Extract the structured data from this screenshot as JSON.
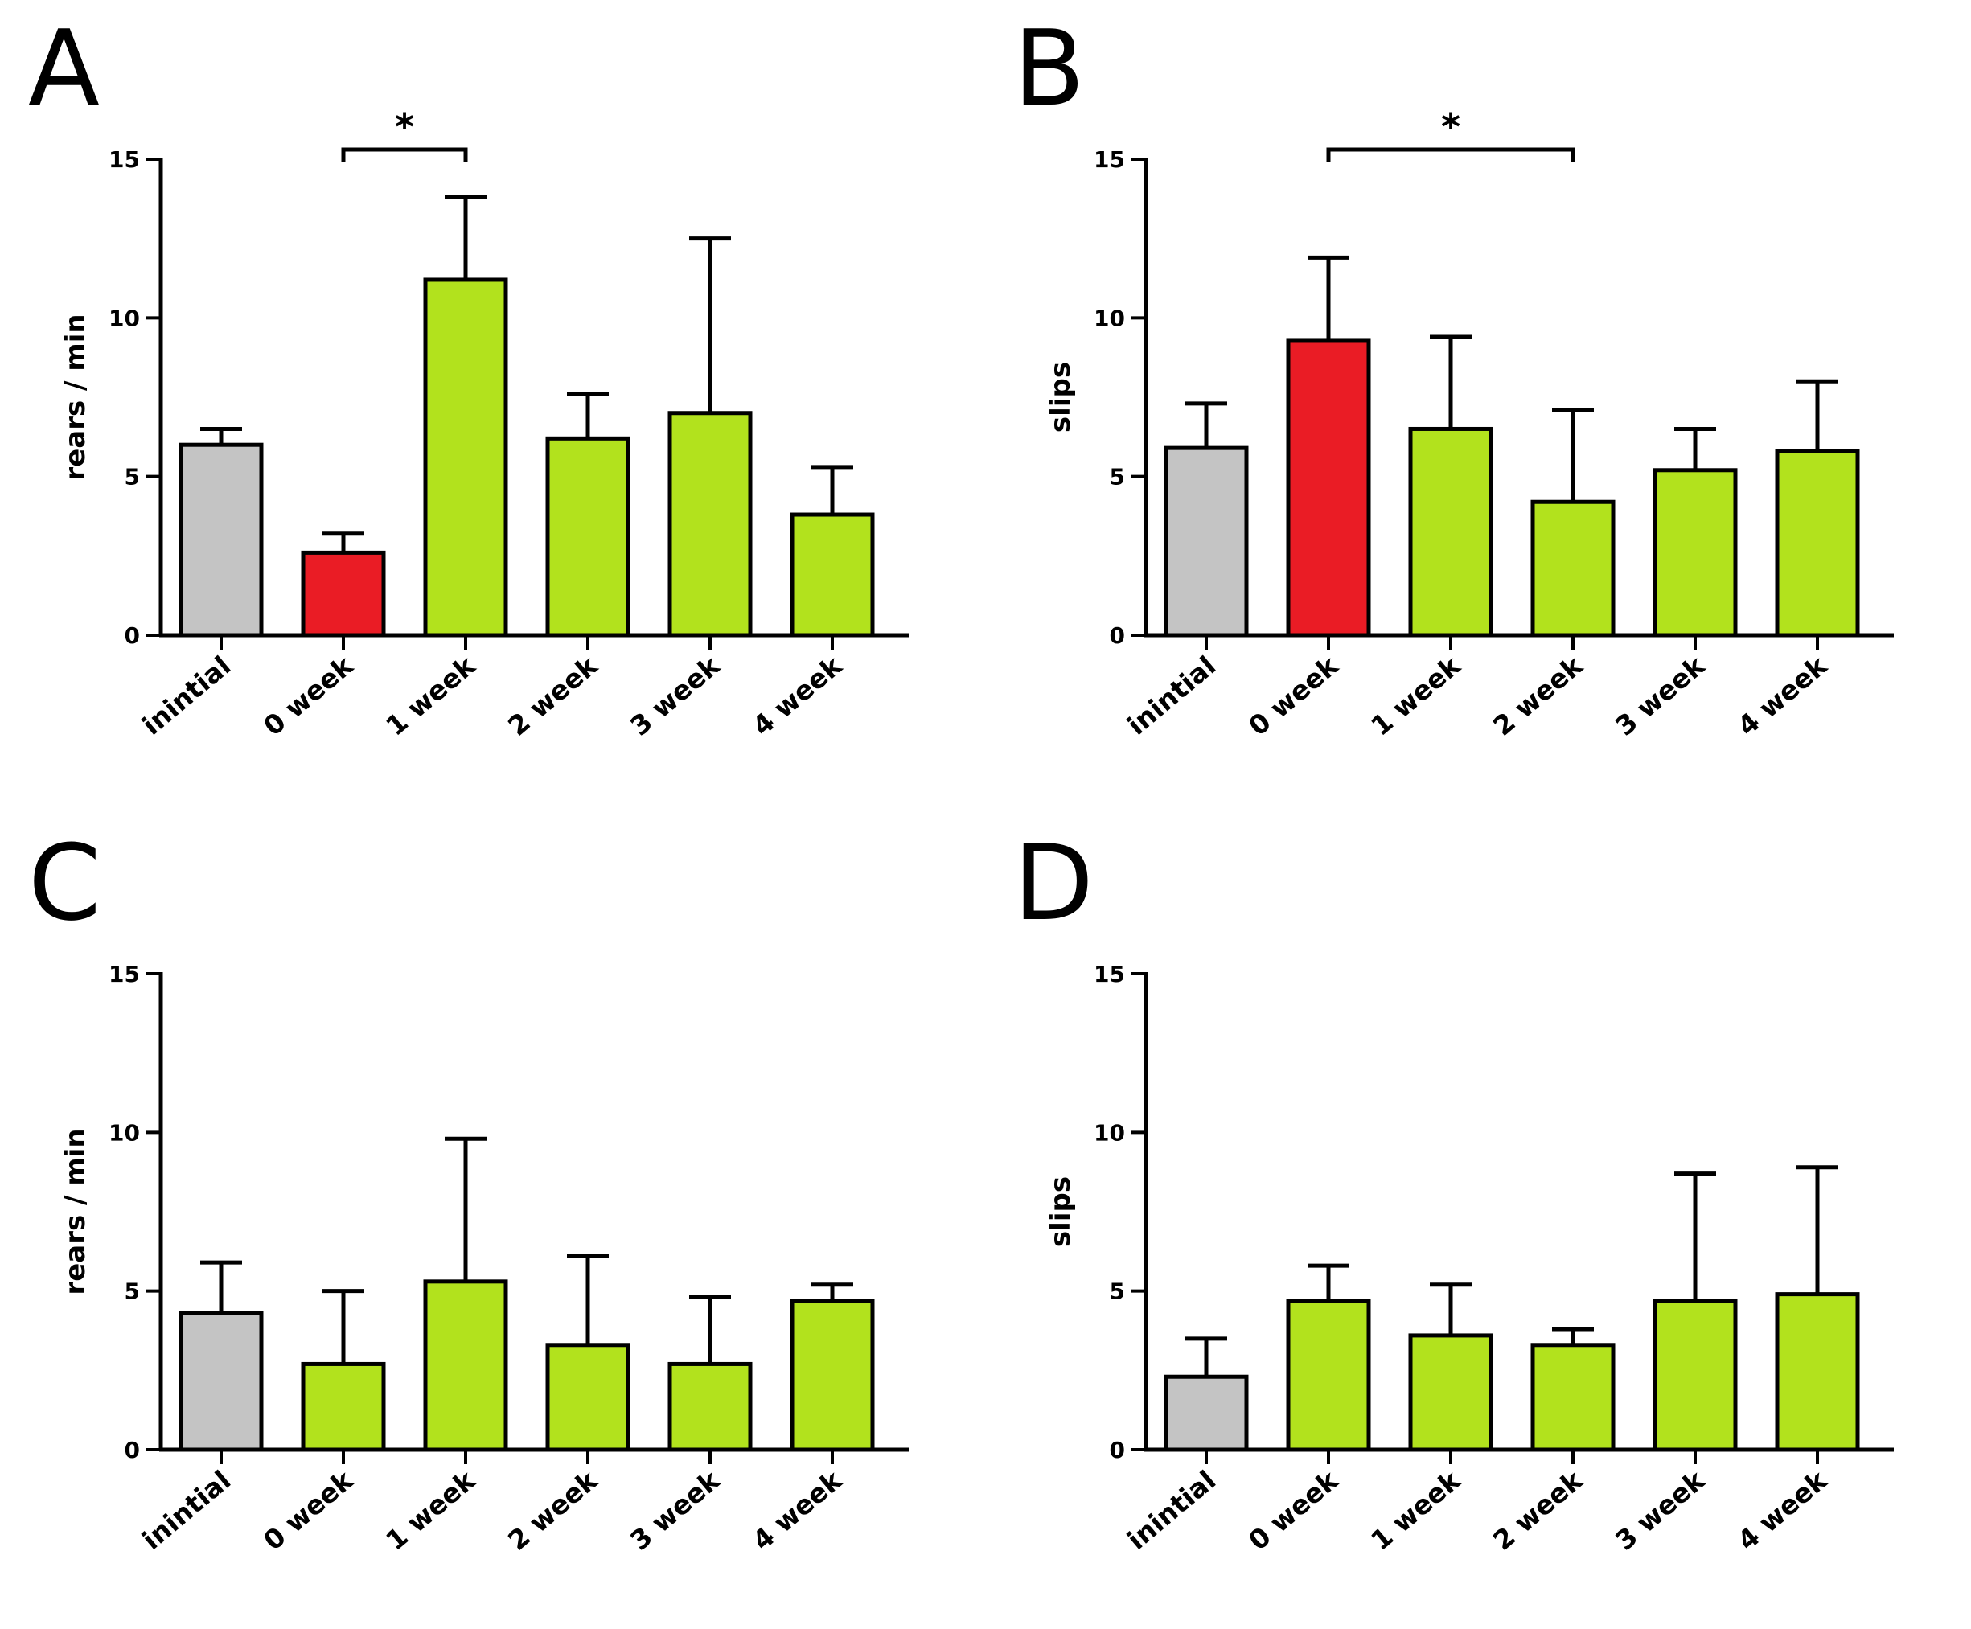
{
  "colors": {
    "baseline": "#c4c4c4",
    "highlight": "#ea1c25",
    "treatment": "#b2e21d",
    "ink": "#000000"
  },
  "chart_data": [
    {
      "panel": "A",
      "type": "bar",
      "ylabel": "rears / min",
      "ylim": [
        0,
        15
      ],
      "yticks": [
        0,
        5,
        10,
        15
      ],
      "categories": [
        "inintial",
        "0 week",
        "1 week",
        "2 week",
        "3 week",
        "4 week"
      ],
      "values": [
        6.0,
        2.6,
        11.2,
        6.2,
        7.0,
        3.8
      ],
      "errors": [
        0.5,
        0.6,
        2.6,
        1.4,
        5.5,
        1.5
      ],
      "bar_colors": [
        "baseline",
        "highlight",
        "treatment",
        "treatment",
        "treatment",
        "treatment"
      ],
      "significance": [
        {
          "from": 1,
          "to": 2,
          "label": "*"
        }
      ]
    },
    {
      "panel": "B",
      "type": "bar",
      "ylabel": "slips",
      "ylim": [
        0,
        15
      ],
      "yticks": [
        0,
        5,
        10,
        15
      ],
      "categories": [
        "inintial",
        "0 week",
        "1 week",
        "2 week",
        "3 week",
        "4 week"
      ],
      "values": [
        5.9,
        9.3,
        6.5,
        4.2,
        5.2,
        5.8
      ],
      "errors": [
        1.4,
        2.6,
        2.9,
        2.9,
        1.3,
        2.2
      ],
      "bar_colors": [
        "baseline",
        "highlight",
        "treatment",
        "treatment",
        "treatment",
        "treatment"
      ],
      "significance": [
        {
          "from": 1,
          "to": 3,
          "label": "*"
        }
      ]
    },
    {
      "panel": "C",
      "type": "bar",
      "ylabel": "rears / min",
      "ylim": [
        0,
        15
      ],
      "yticks": [
        0,
        5,
        10,
        15
      ],
      "categories": [
        "inintial",
        "0 week",
        "1 week",
        "2 week",
        "3 week",
        "4 week"
      ],
      "values": [
        4.3,
        2.7,
        5.3,
        3.3,
        2.7,
        4.7
      ],
      "errors": [
        1.6,
        2.3,
        4.5,
        2.8,
        2.1,
        0.5
      ],
      "bar_colors": [
        "baseline",
        "treatment",
        "treatment",
        "treatment",
        "treatment",
        "treatment"
      ],
      "significance": []
    },
    {
      "panel": "D",
      "type": "bar",
      "ylabel": "slips",
      "ylim": [
        0,
        15
      ],
      "yticks": [
        0,
        5,
        10,
        15
      ],
      "categories": [
        "inintial",
        "0 week",
        "1 week",
        "2 week",
        "3 week",
        "4 week"
      ],
      "values": [
        2.3,
        4.7,
        3.6,
        3.3,
        4.7,
        4.9
      ],
      "errors": [
        1.2,
        1.1,
        1.6,
        0.5,
        4.0,
        4.0
      ],
      "bar_colors": [
        "baseline",
        "treatment",
        "treatment",
        "treatment",
        "treatment",
        "treatment"
      ],
      "significance": []
    }
  ]
}
